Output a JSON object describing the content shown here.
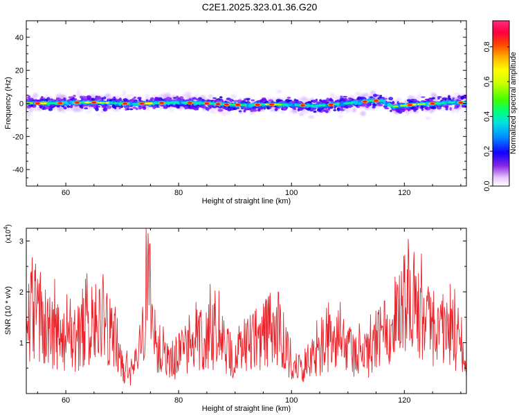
{
  "title": "C2E1.2025.323.01.36.G20",
  "chart_data": [
    {
      "type": "heatmap",
      "xlabel": "Height of straight line (km)",
      "ylabel": "Frequency (Hz)",
      "xlim": [
        53,
        131
      ],
      "ylim": [
        -50,
        50
      ],
      "xticks": [
        60,
        80,
        100,
        120
      ],
      "yticks": [
        -40,
        -20,
        0,
        20,
        40
      ],
      "center_line_hz": [
        [
          53,
          0.2
        ],
        [
          56,
          0.0
        ],
        [
          60,
          0.3
        ],
        [
          64,
          0.6
        ],
        [
          68,
          0.3
        ],
        [
          72,
          -0.4
        ],
        [
          76,
          0.2
        ],
        [
          80,
          0.5
        ],
        [
          84,
          0.2
        ],
        [
          88,
          -0.6
        ],
        [
          92,
          -1.0
        ],
        [
          96,
          -0.6
        ],
        [
          100,
          -0.8
        ],
        [
          104,
          -1.6
        ],
        [
          108,
          -0.4
        ],
        [
          112,
          0.6
        ],
        [
          114,
          1.6
        ],
        [
          116,
          1.5
        ],
        [
          118,
          -2.0
        ],
        [
          122,
          -0.6
        ],
        [
          126,
          0.0
        ],
        [
          128,
          0.6
        ],
        [
          131,
          0.4
        ]
      ],
      "hot_spots_km": [
        55,
        59,
        62,
        65,
        70.5,
        73.5,
        77,
        82,
        85,
        87,
        88.5,
        90.5,
        94,
        96.5,
        102,
        107,
        113,
        115,
        121,
        125,
        130
      ],
      "colorbar": {
        "label": "Normalized spectral amplitude",
        "range": [
          0.0,
          0.95
        ],
        "ticks": [
          0.0,
          0.2,
          0.4,
          0.6,
          0.8
        ]
      }
    },
    {
      "type": "line",
      "xlabel": "Height of straight line (km)",
      "ylabel": "SNR (10 * v/v)",
      "yscale_label": "(x10",
      "yscale_exp": "4",
      "yscale_close": ")",
      "xlim": [
        53,
        131
      ],
      "ylim": [
        0,
        3.25
      ],
      "xticks": [
        60,
        80,
        100,
        120
      ],
      "yticks": [
        1,
        2,
        3
      ],
      "color": "#e8232a",
      "envelope_x": [
        53,
        54,
        56,
        58,
        60,
        62,
        64,
        65,
        67,
        69,
        70,
        72,
        73,
        74,
        74.8,
        76,
        78,
        80,
        82,
        84,
        86,
        88,
        90,
        92,
        94,
        96,
        98,
        100,
        102,
        104,
        106,
        108,
        110,
        112,
        114,
        116,
        118,
        119.5,
        121,
        123,
        125,
        127,
        129,
        131
      ],
      "envelope_y": [
        1.5,
        2.0,
        1.5,
        1.3,
        1.15,
        1.25,
        1.45,
        1.6,
        1.55,
        1.2,
        0.55,
        0.4,
        0.85,
        1.95,
        2.6,
        1.1,
        0.7,
        0.85,
        1.1,
        1.25,
        1.3,
        1.1,
        0.7,
        1.05,
        1.25,
        1.45,
        1.6,
        0.55,
        0.6,
        0.8,
        1.05,
        1.2,
        1.0,
        0.8,
        0.9,
        1.05,
        1.1,
        2.2,
        2.25,
        1.6,
        1.4,
        1.3,
        1.2,
        0.6
      ]
    }
  ]
}
